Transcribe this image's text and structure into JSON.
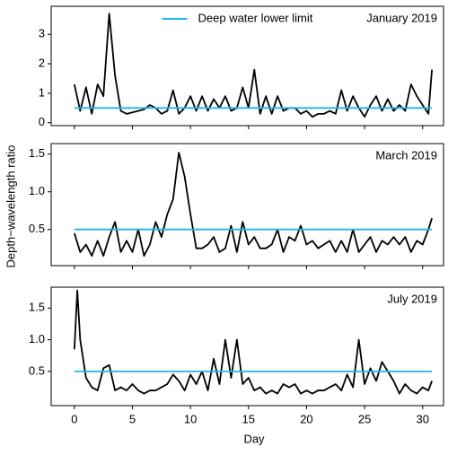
{
  "figure": {
    "xlabel": "Day",
    "ylabel": "Depth−wavelength ratio",
    "sharex": true
  },
  "chart_data": [
    {
      "type": "line",
      "title": "January 2019",
      "legend": "upper center",
      "xlim": [
        -2.0,
        31.8
      ],
      "xticks": [
        0,
        5,
        10,
        15,
        20,
        25,
        30
      ],
      "ylim": [
        -0.1,
        3.95
      ],
      "yticks": [
        0,
        1,
        2,
        3
      ],
      "series": [
        {
          "color": "#000000",
          "x": [
            0,
            0.5,
            1,
            1.5,
            2,
            2.5,
            3,
            3.5,
            4,
            4.5,
            5,
            5.5,
            6,
            6.5,
            7,
            7.5,
            8,
            8.5,
            9,
            9.5,
            10,
            10.5,
            11,
            11.5,
            12,
            12.5,
            13,
            13.5,
            14,
            14.5,
            15,
            15.5,
            16,
            16.5,
            17,
            17.5,
            18,
            18.5,
            19,
            19.5,
            20,
            20.5,
            21,
            21.5,
            22,
            22.5,
            23,
            23.5,
            24,
            24.5,
            25,
            25.5,
            26,
            26.5,
            27,
            27.5,
            28,
            28.5,
            29,
            29.5,
            30,
            30.5,
            30.8
          ],
          "values": [
            1.3,
            0.4,
            1.2,
            0.3,
            1.3,
            0.9,
            3.7,
            1.6,
            0.4,
            0.3,
            0.35,
            0.4,
            0.45,
            0.6,
            0.5,
            0.3,
            0.4,
            1.1,
            0.3,
            0.5,
            0.9,
            0.4,
            0.9,
            0.4,
            0.8,
            0.5,
            0.9,
            0.4,
            0.5,
            1.2,
            0.5,
            1.8,
            0.3,
            0.9,
            0.3,
            0.9,
            0.4,
            0.5,
            0.5,
            0.3,
            0.4,
            0.2,
            0.3,
            0.3,
            0.4,
            0.3,
            1.1,
            0.4,
            0.9,
            0.5,
            0.2,
            0.6,
            0.9,
            0.4,
            0.8,
            0.4,
            0.6,
            0.4,
            1.3,
            0.9,
            0.6,
            0.3,
            1.8
          ]
        },
        {
          "name": "Deep water lower limit",
          "color": "#1cb8ea",
          "x": [
            0,
            30.8
          ],
          "values": [
            0.5,
            0.5
          ]
        }
      ]
    },
    {
      "type": "line",
      "title": "March 2019",
      "xlim": [
        -2.0,
        31.8
      ],
      "xticks": [
        0,
        5,
        10,
        15,
        20,
        25,
        30
      ],
      "ylim": [
        0.02,
        1.64
      ],
      "yticks": [
        0.5,
        {
          "value": 1.0,
          "label": "1.0"
        },
        1.5
      ],
      "series": [
        {
          "color": "#000000",
          "x": [
            0,
            0.5,
            1,
            1.5,
            2,
            2.5,
            3,
            3.5,
            4,
            4.5,
            5,
            5.5,
            6,
            6.5,
            7,
            7.5,
            8,
            8.5,
            9,
            9.5,
            10,
            10.5,
            11,
            11.5,
            12,
            12.5,
            13,
            13.5,
            14,
            14.5,
            15,
            15.5,
            16,
            16.5,
            17,
            17.5,
            18,
            18.5,
            19,
            19.5,
            20,
            20.5,
            21,
            21.5,
            22,
            22.5,
            23,
            23.5,
            24,
            24.5,
            25,
            25.5,
            26,
            26.5,
            27,
            27.5,
            28,
            28.5,
            29,
            29.5,
            30,
            30.5,
            30.8
          ],
          "values": [
            0.45,
            0.2,
            0.3,
            0.15,
            0.35,
            0.15,
            0.4,
            0.6,
            0.2,
            0.35,
            0.2,
            0.5,
            0.15,
            0.3,
            0.6,
            0.4,
            0.7,
            0.9,
            1.52,
            1.2,
            0.7,
            0.25,
            0.25,
            0.3,
            0.4,
            0.2,
            0.25,
            0.55,
            0.2,
            0.6,
            0.3,
            0.4,
            0.25,
            0.25,
            0.3,
            0.5,
            0.2,
            0.4,
            0.35,
            0.55,
            0.3,
            0.35,
            0.25,
            0.3,
            0.35,
            0.2,
            0.35,
            0.2,
            0.5,
            0.2,
            0.3,
            0.4,
            0.2,
            0.35,
            0.3,
            0.4,
            0.3,
            0.4,
            0.2,
            0.35,
            0.3,
            0.5,
            0.65
          ]
        },
        {
          "color": "#1cb8ea",
          "x": [
            0,
            30.8
          ],
          "values": [
            0.5,
            0.5
          ]
        }
      ]
    },
    {
      "type": "line",
      "title": "July 2019",
      "xlim": [
        -2.0,
        31.8
      ],
      "xticks": [
        0,
        5,
        10,
        15,
        20,
        25,
        30
      ],
      "ylim": [
        -0.04,
        1.83
      ],
      "yticks": [
        0.5,
        {
          "value": 1.0,
          "label": "1.0"
        },
        1.5
      ],
      "series": [
        {
          "color": "#000000",
          "x": [
            0,
            0.25,
            0.5,
            1,
            1.5,
            2,
            2.5,
            3,
            3.5,
            4,
            4.5,
            5,
            5.5,
            6,
            6.5,
            7,
            7.5,
            8,
            8.5,
            9,
            9.5,
            10,
            10.5,
            11,
            11.5,
            12,
            12.5,
            13,
            13.5,
            14,
            14.5,
            15,
            15.5,
            16,
            16.5,
            17,
            17.5,
            18,
            18.5,
            19,
            19.5,
            20,
            20.5,
            21,
            21.5,
            22,
            22.5,
            23,
            23.5,
            24,
            24.5,
            25,
            25.5,
            26,
            26.5,
            27,
            27.5,
            28,
            28.5,
            29,
            29.5,
            30,
            30.5,
            30.8
          ],
          "values": [
            0.85,
            1.78,
            1.0,
            0.4,
            0.25,
            0.2,
            0.55,
            0.6,
            0.2,
            0.25,
            0.2,
            0.3,
            0.2,
            0.15,
            0.2,
            0.2,
            0.25,
            0.3,
            0.45,
            0.35,
            0.2,
            0.45,
            0.3,
            0.5,
            0.2,
            0.7,
            0.3,
            1.0,
            0.4,
            1.0,
            0.3,
            0.4,
            0.2,
            0.25,
            0.15,
            0.2,
            0.15,
            0.3,
            0.25,
            0.3,
            0.15,
            0.2,
            0.15,
            0.2,
            0.2,
            0.25,
            0.3,
            0.2,
            0.45,
            0.25,
            1.0,
            0.3,
            0.55,
            0.35,
            0.65,
            0.5,
            0.35,
            0.15,
            0.3,
            0.2,
            0.15,
            0.25,
            0.2,
            0.35
          ]
        },
        {
          "color": "#1cb8ea",
          "x": [
            0,
            30.8
          ],
          "values": [
            0.5,
            0.5
          ]
        }
      ]
    }
  ]
}
